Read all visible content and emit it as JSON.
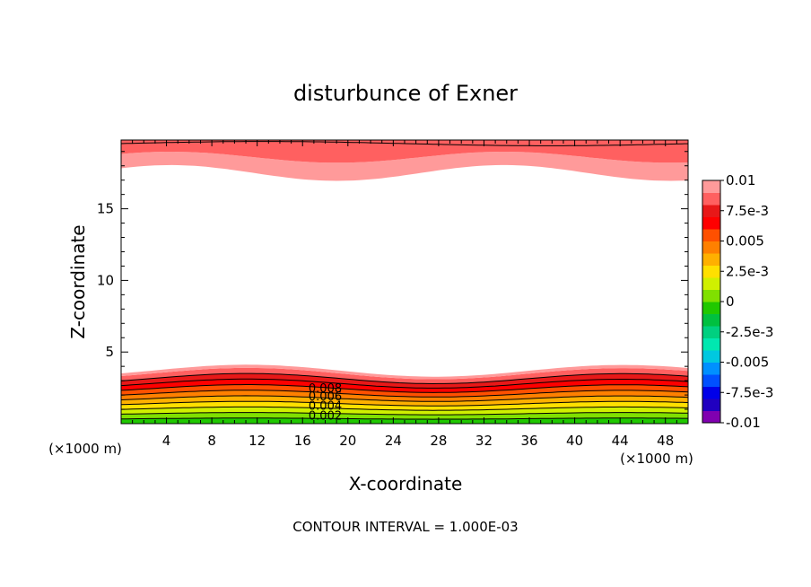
{
  "chart_data": {
    "type": "contour",
    "title": "disturbunce of Exner",
    "xlabel": "X-coordinate",
    "ylabel": "Z-coordinate",
    "x_unit": "(×1000 m)",
    "z_unit": "(×1000 m)",
    "xlim": [
      0,
      50
    ],
    "ylim": [
      0,
      19.8
    ],
    "x_ticks": [
      4,
      8,
      12,
      16,
      20,
      24,
      28,
      32,
      36,
      40,
      44,
      48
    ],
    "y_ticks": [
      5,
      10,
      15
    ],
    "contour_interval_note": "CONTOUR INTERVAL = 1.000E-03",
    "contour_labels": [
      "0.008",
      "0.006",
      "0.004",
      "0.002"
    ],
    "colorbar": {
      "range": [
        -0.01,
        0.01
      ],
      "tick_values": [
        0.01,
        0.0075,
        0.005,
        0.0025,
        0,
        -0.0025,
        -0.005,
        -0.0075,
        -0.01
      ],
      "tick_labels": [
        "0.01",
        "7.5e-3",
        "0.005",
        "2.5e-3",
        "0",
        "-2.5e-3",
        "-0.005",
        "-7.5e-3",
        "-0.01"
      ],
      "colors": [
        "#8000b0",
        "#2000c0",
        "#0000e8",
        "#0050ff",
        "#0090ff",
        "#00c8e0",
        "#00e8b0",
        "#00d080",
        "#00c040",
        "#20c800",
        "#80e000",
        "#d0f000",
        "#ffe000",
        "#ffb000",
        "#ff8000",
        "#ff5000",
        "#ff0000",
        "#e81818",
        "#ff6060",
        "#ff9a9a"
      ]
    },
    "fields": {
      "lower_layer_top_z": 3.5,
      "upper_layer_bottom_z": 17.5,
      "x_mid": 18
    }
  }
}
